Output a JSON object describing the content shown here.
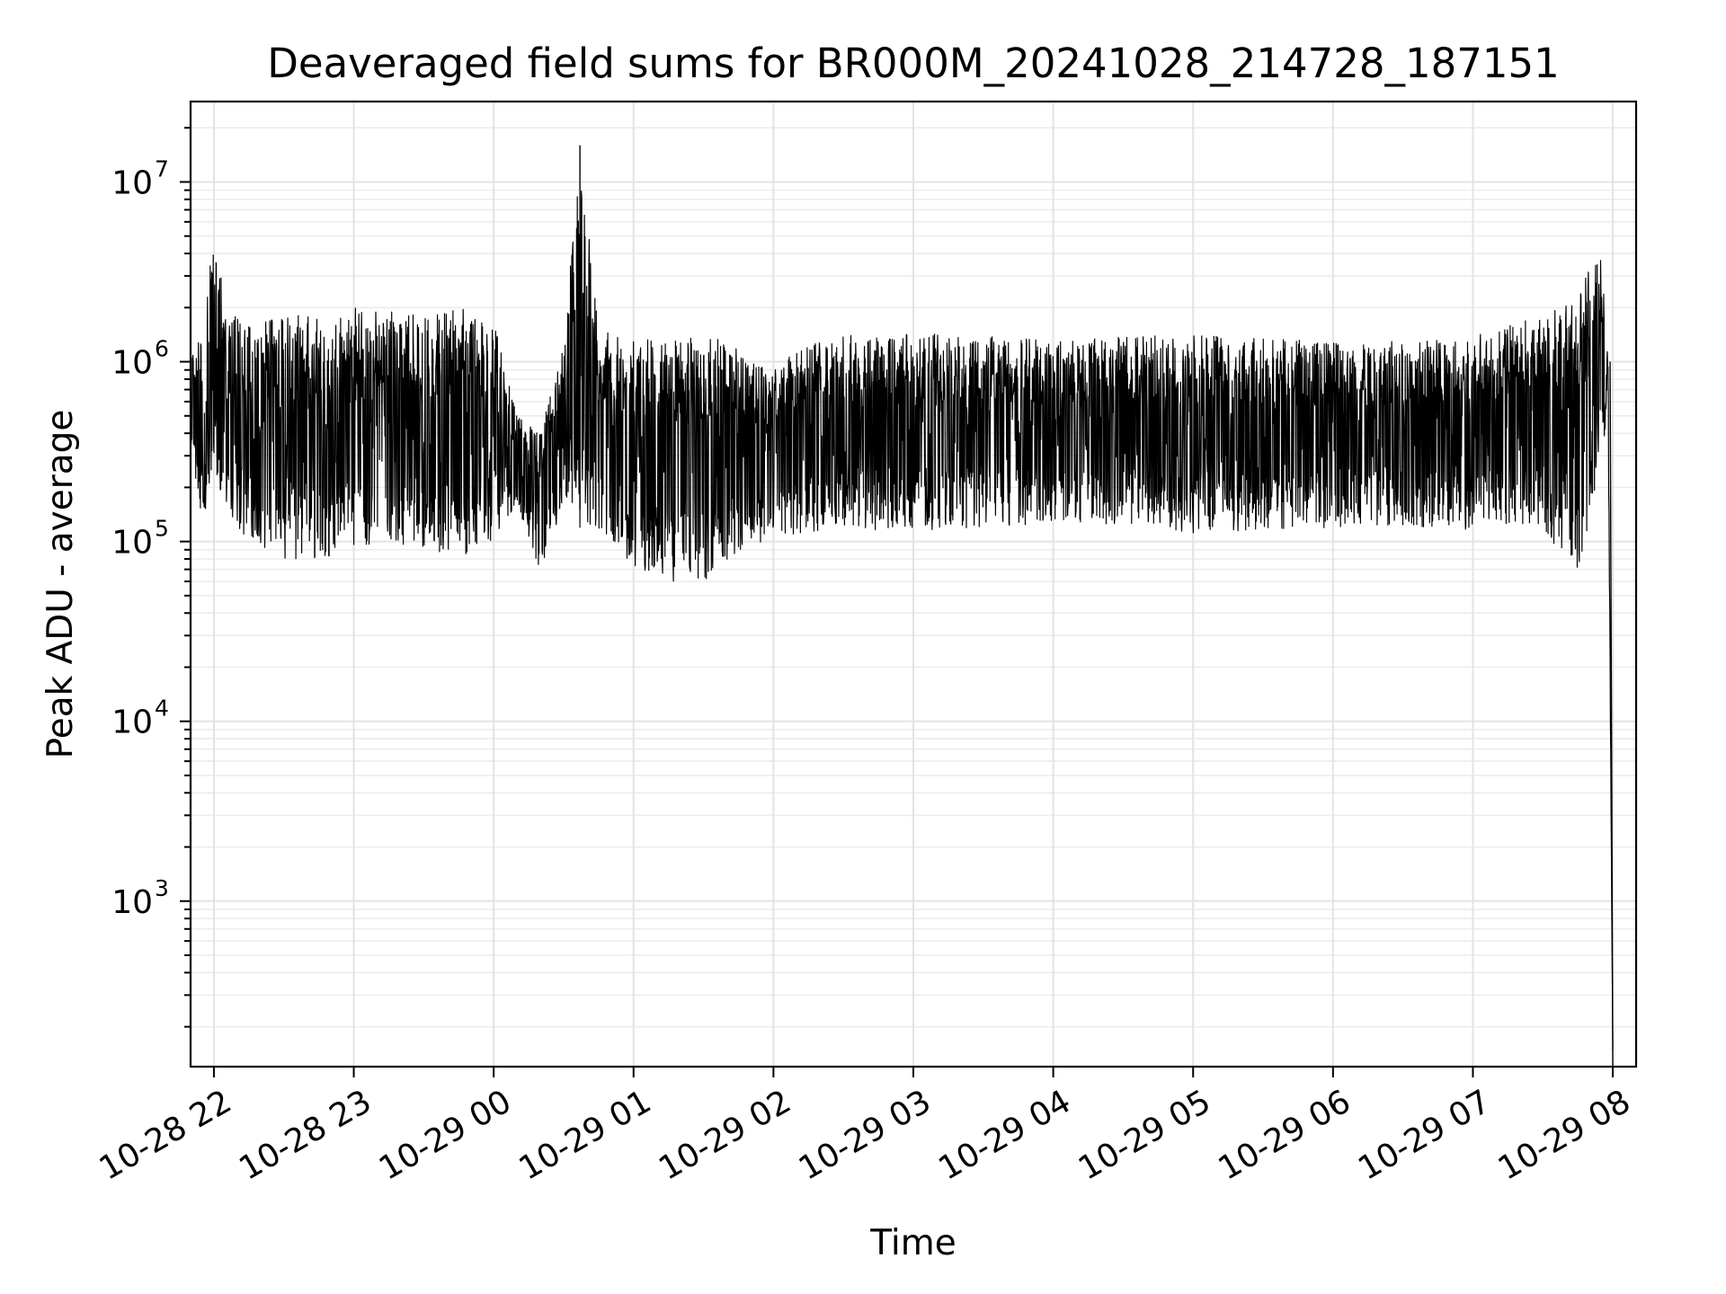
{
  "chart_data": {
    "type": "line",
    "title": "Deaveraged field sums for BR000M_20241028_214728_187151",
    "xlabel": "Time",
    "ylabel": "Peak ADU - average",
    "y_scale": "log",
    "ylim": [
      120,
      28000000
    ],
    "xlim": [
      "2024-10-28 21:50",
      "2024-10-29 08:10"
    ],
    "grid": "both (major and minor)",
    "line_color": "#000000",
    "x_ticks": [
      {
        "value": "2024-10-28 22:00",
        "label": "10-28 22"
      },
      {
        "value": "2024-10-28 23:00",
        "label": "10-28 23"
      },
      {
        "value": "2024-10-29 00:00",
        "label": "10-29 00"
      },
      {
        "value": "2024-10-29 01:00",
        "label": "10-29 01"
      },
      {
        "value": "2024-10-29 02:00",
        "label": "10-29 02"
      },
      {
        "value": "2024-10-29 03:00",
        "label": "10-29 03"
      },
      {
        "value": "2024-10-29 04:00",
        "label": "10-29 04"
      },
      {
        "value": "2024-10-29 05:00",
        "label": "10-29 05"
      },
      {
        "value": "2024-10-29 06:00",
        "label": "10-29 06"
      },
      {
        "value": "2024-10-29 07:00",
        "label": "10-29 07"
      },
      {
        "value": "2024-10-29 08:00",
        "label": "10-29 08"
      }
    ],
    "y_ticks": [
      {
        "value": 1000,
        "base": "10",
        "exp": "3"
      },
      {
        "value": 10000,
        "base": "10",
        "exp": "4"
      },
      {
        "value": 100000,
        "base": "10",
        "exp": "5"
      },
      {
        "value": 1000000,
        "base": "10",
        "exp": "6"
      },
      {
        "value": 10000000,
        "base": "10",
        "exp": "7"
      }
    ],
    "series_envelope": {
      "x": [
        "2024-10-28 21:50",
        "2024-10-28 21:55",
        "2024-10-28 22:00",
        "2024-10-28 22:05",
        "2024-10-28 22:15",
        "2024-10-28 22:30",
        "2024-10-28 22:45",
        "2024-10-28 23:00",
        "2024-10-28 23:15",
        "2024-10-28 23:30",
        "2024-10-28 23:45",
        "2024-10-29 00:00",
        "2024-10-29 00:10",
        "2024-10-29 00:20",
        "2024-10-29 00:30",
        "2024-10-29 00:37",
        "2024-10-29 00:45",
        "2024-10-29 01:00",
        "2024-10-29 01:15",
        "2024-10-29 01:30",
        "2024-10-29 01:45",
        "2024-10-29 02:00",
        "2024-10-29 02:15",
        "2024-10-29 02:30",
        "2024-10-29 02:45",
        "2024-10-29 03:00",
        "2024-10-29 03:30",
        "2024-10-29 04:00",
        "2024-10-29 04:30",
        "2024-10-29 05:00",
        "2024-10-29 05:30",
        "2024-10-29 06:00",
        "2024-10-29 06:30",
        "2024-10-29 07:00",
        "2024-10-29 07:30",
        "2024-10-29 07:45",
        "2024-10-29 07:55",
        "2024-10-29 07:58",
        "2024-10-29 08:00"
      ],
      "high": [
        1000000,
        1500000,
        5500000,
        2000000,
        1600000,
        1800000,
        1900000,
        2000000,
        1900000,
        1800000,
        2000000,
        1700000,
        500000,
        400000,
        1200000,
        16000000,
        1500000,
        1300000,
        1400000,
        1500000,
        1200000,
        900000,
        1300000,
        1400000,
        1400000,
        1450000,
        1400000,
        1300000,
        1400000,
        1400000,
        1350000,
        1300000,
        1300000,
        1400000,
        1800000,
        2500000,
        4200000,
        1000000,
        150
      ],
      "low": [
        350000,
        120000,
        250000,
        150000,
        100000,
        80000,
        80000,
        90000,
        100000,
        90000,
        80000,
        100000,
        150000,
        70000,
        150000,
        150000,
        100000,
        70000,
        60000,
        60000,
        80000,
        110000,
        110000,
        120000,
        115000,
        115000,
        120000,
        125000,
        125000,
        110000,
        115000,
        120000,
        120000,
        115000,
        120000,
        60000,
        300000,
        500000,
        150
      ]
    }
  }
}
